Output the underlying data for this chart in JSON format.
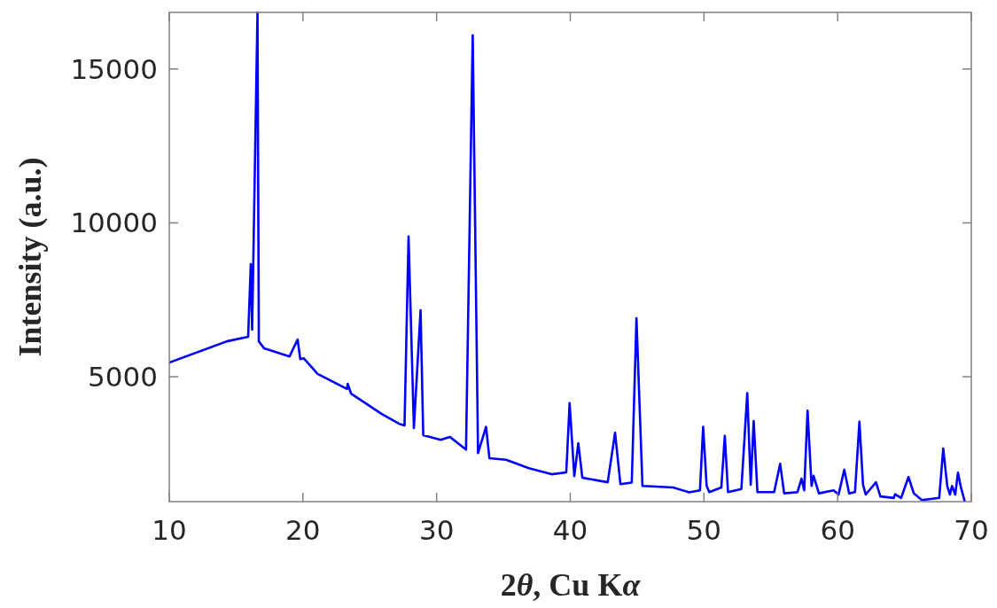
{
  "chart_data": {
    "type": "line",
    "xlabel": "2θ, Cu Kα",
    "ylabel": "Intensity (a.u.)",
    "xlim": [
      10,
      70
    ],
    "ylim": [
      940,
      16840
    ],
    "xticks": [
      10,
      20,
      30,
      40,
      50,
      60,
      70
    ],
    "yticks": [
      5000,
      10000,
      15000
    ],
    "grid": false,
    "line_style": "solid",
    "series": [
      {
        "color": "#0000ff",
        "x": [
          10,
          14.3,
          15.9,
          16.1,
          16.2,
          16.6,
          16.7,
          17.1,
          19.0,
          19.6,
          19.8,
          20.05,
          21.1,
          23.3,
          23.35,
          23.6,
          25.9,
          27.2,
          27.6,
          27.9,
          28.3,
          28.8,
          29.0,
          30.3,
          31.0,
          32.2,
          32.7,
          33.1,
          33.7,
          33.95,
          35.2,
          36.9,
          38.6,
          39.7,
          39.95,
          40.3,
          40.6,
          40.9,
          42.8,
          43.35,
          43.75,
          44.6,
          44.95,
          45.4,
          47.7,
          48.9,
          49.7,
          49.94,
          50.2,
          50.4,
          51.3,
          51.56,
          51.8,
          52.8,
          53.24,
          53.5,
          53.72,
          54.0,
          55.25,
          55.7,
          56.0,
          57.0,
          57.3,
          57.5,
          57.75,
          58.05,
          58.2,
          58.6,
          59.7,
          60.07,
          60.5,
          60.86,
          61.3,
          61.63,
          61.9,
          62.1,
          62.87,
          63.2,
          64.2,
          64.3,
          64.75,
          65.3,
          65.7,
          66.3,
          67.6,
          67.9,
          68.2,
          68.4,
          68.56,
          68.8,
          69.0,
          69.2,
          69.5
        ],
        "values": [
          5460,
          6150,
          6300,
          8660,
          6530,
          16840,
          6150,
          5920,
          5660,
          6210,
          5570,
          5600,
          5090,
          4600,
          4770,
          4450,
          3790,
          3470,
          3420,
          9560,
          3330,
          7160,
          3100,
          2950,
          3040,
          2630,
          16100,
          2520,
          3370,
          2350,
          2300,
          2030,
          1830,
          1890,
          4140,
          1770,
          2840,
          1720,
          1570,
          3180,
          1510,
          1560,
          6900,
          1450,
          1400,
          1240,
          1310,
          3370,
          1450,
          1250,
          1400,
          3080,
          1250,
          1350,
          4470,
          1490,
          3560,
          1250,
          1250,
          2170,
          1210,
          1250,
          1690,
          1310,
          3900,
          1450,
          1780,
          1210,
          1310,
          1170,
          1980,
          1210,
          1250,
          3540,
          1490,
          1170,
          1570,
          1110,
          1060,
          1180,
          1060,
          1740,
          1210,
          990,
          1060,
          2670,
          1450,
          1170,
          1450,
          1170,
          1880,
          1450,
          960
        ]
      }
    ]
  }
}
